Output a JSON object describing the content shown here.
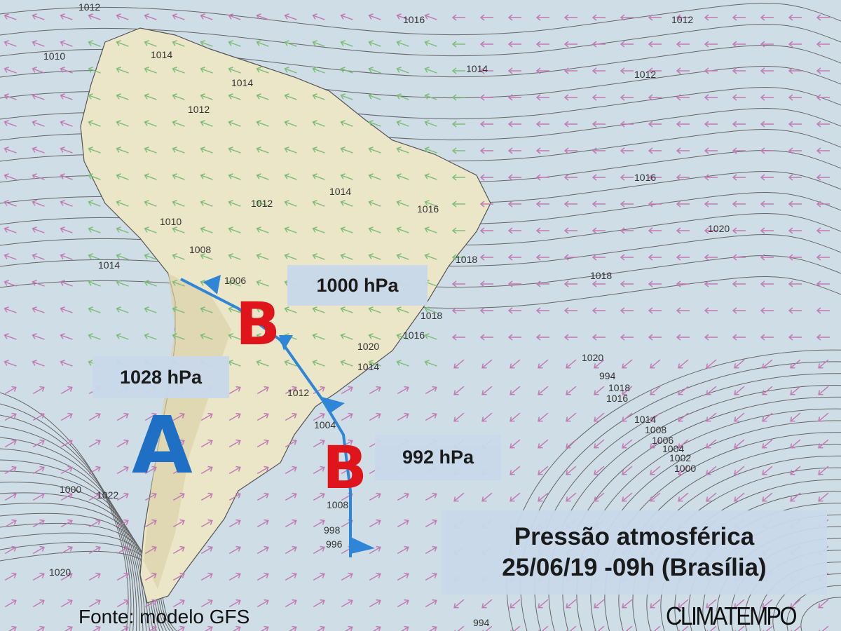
{
  "title": {
    "line1": "Pressão atmosférica",
    "line2": "25/06/19  -09h (Brasília)"
  },
  "source": "Fonte: modelo GFS",
  "logo": "CLIMATEMPO",
  "systems": [
    {
      "letter": "B",
      "type": "low",
      "pressure": "1000 hPa"
    },
    {
      "letter": "A",
      "type": "high",
      "pressure": "1028 hPa"
    },
    {
      "letter": "B",
      "type": "low",
      "pressure": "992 hPa"
    }
  ],
  "isobar_labels": [
    "1012",
    "1016",
    "1012",
    "1010",
    "1014",
    "1014",
    "1014",
    "1012",
    "1012",
    "1014",
    "1012",
    "1016",
    "1016",
    "1010",
    "1018",
    "1020",
    "1008",
    "1014",
    "1006",
    "1018",
    "1016",
    "1018",
    "1020",
    "1020",
    "1014",
    "1012",
    "1004",
    "1000",
    "1022",
    "1020",
    "994",
    "1008",
    "998",
    "996",
    "994",
    "1018",
    "1016",
    "1014",
    "1008",
    "1006",
    "1004",
    "1002",
    "1000"
  ],
  "colors": {
    "low": "#e0141b",
    "high": "#1f6fc4",
    "front": "#2f86d6",
    "wind_ocean": "#c27bb4",
    "wind_land": "#7fbf7a",
    "land": "#ece6c8",
    "ocean": "#cfdde6"
  }
}
